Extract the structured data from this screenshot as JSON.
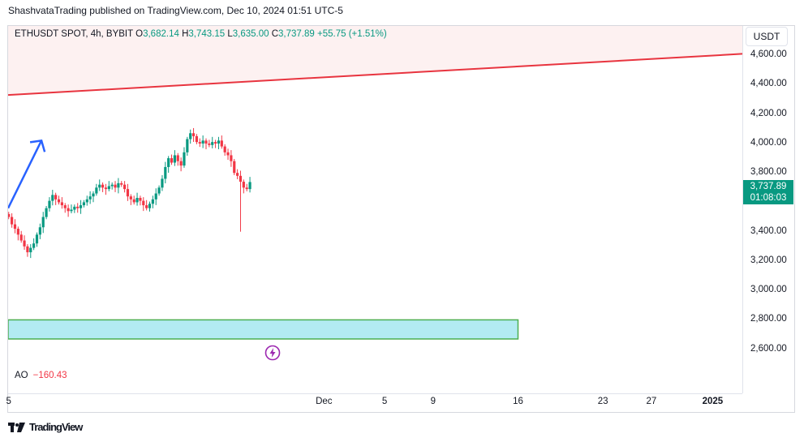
{
  "header": {
    "publisher_text": "ShashvataTrading published on TradingView.com, Dec 10, 2024 01:51 UTC-5"
  },
  "legend": {
    "symbol": "ETHUSDT SPOT, 4h, BYBIT",
    "o_label": "O",
    "o_value": "3,682.14",
    "h_label": "H",
    "h_value": "3,743.15",
    "l_label": "L",
    "l_value": "3,635.00",
    "c_label": "C",
    "c_value": "3,737.89",
    "change": "+55.75 (+1.51%)"
  },
  "currency_button": "USDT",
  "last_price": {
    "price": "3,737.89",
    "countdown": "01:08:03"
  },
  "indicator": {
    "name": "AO",
    "value": "−160.43"
  },
  "footer": {
    "brand": "TradingView"
  },
  "colors": {
    "up": "#089981",
    "down": "#f23645",
    "trendline": "#e8343f",
    "arrow": "#2962ff",
    "zone_fill": "#b2ebf2",
    "zone_border": "#4caf50",
    "bolt": "#9c27b0"
  },
  "icons": {
    "lightning": "lightning-icon",
    "logo": "tradingview-logo-icon"
  },
  "chart_data": {
    "type": "candlestick",
    "ylim": [
      2300,
      4800
    ],
    "y_ticks": [
      "4,600.00",
      "4,400.00",
      "4,200.00",
      "4,000.00",
      "3,800.00",
      "3,400.00",
      "3,200.00",
      "3,000.00",
      "2,800.00",
      "2,600.00"
    ],
    "y_tick_values": [
      4600,
      4400,
      4200,
      4000,
      3800,
      3400,
      3200,
      3000,
      2800,
      2600
    ],
    "x_ticks": [
      "5",
      "Dec",
      "5",
      "9",
      "16",
      "23",
      "27",
      "2025"
    ],
    "x_tick_days": [
      -26,
      0,
      5,
      9,
      16,
      23,
      27,
      32
    ],
    "xlim_days": [
      -26.05,
      34.5
    ],
    "candle_interval": "4h",
    "closes": [
      3500,
      3450,
      3420,
      3380,
      3340,
      3300,
      3260,
      3290,
      3320,
      3380,
      3430,
      3500,
      3560,
      3610,
      3650,
      3620,
      3600,
      3580,
      3560,
      3540,
      3550,
      3570,
      3560,
      3580,
      3600,
      3620,
      3640,
      3660,
      3700,
      3720,
      3700,
      3690,
      3710,
      3720,
      3700,
      3730,
      3720,
      3690,
      3640,
      3620,
      3600,
      3630,
      3610,
      3580,
      3560,
      3590,
      3620,
      3660,
      3700,
      3760,
      3840,
      3900,
      3870,
      3920,
      3880,
      3850,
      3940,
      4030,
      4070,
      4050,
      4010,
      4000,
      4020,
      4000,
      3990,
      4010,
      4000,
      4020,
      3980,
      3940,
      3920,
      3880,
      3800,
      3780,
      3740,
      3700,
      3690,
      3737.89
    ],
    "opens_offset_note": "",
    "annotations": {
      "trendline": {
        "from": [
          -26.05,
          4330
        ],
        "to": [
          34.5,
          4610
        ]
      },
      "support_zone": {
        "y_low": 2670,
        "y_high": 2800,
        "x_from": -26.05,
        "x_to": 16
      },
      "arrow": {
        "from": [
          -26.05,
          3560
        ],
        "to": [
          -23.3,
          4020
        ]
      }
    }
  }
}
